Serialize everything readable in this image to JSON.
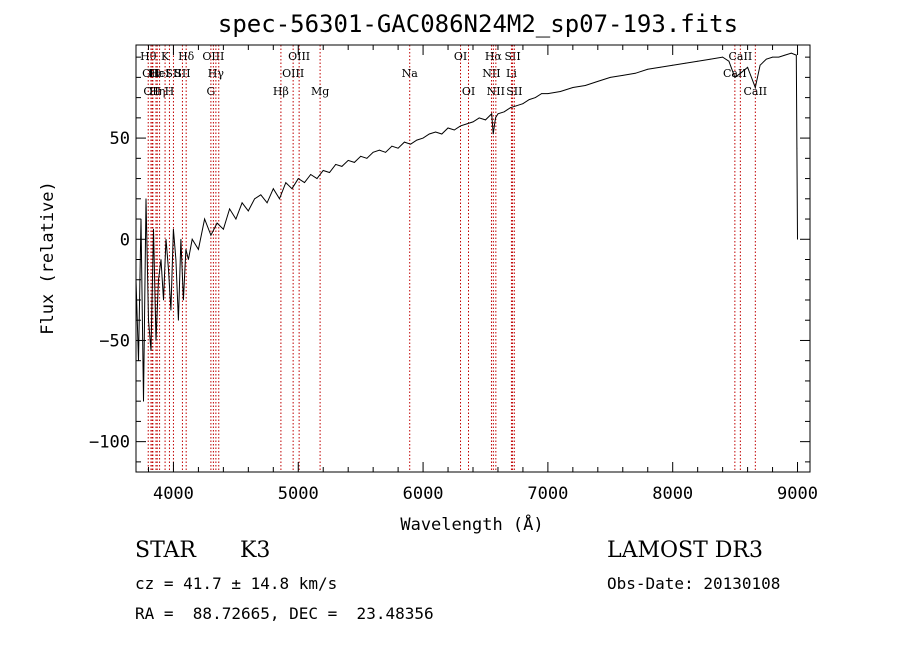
{
  "chart_data": {
    "type": "line",
    "title": "spec-56301-GAC086N24M2_sp07-193.fits",
    "xlabel": "Wavelength (Å)",
    "ylabel": "Flux (relative)",
    "xlim": [
      3700,
      9100
    ],
    "ylim": [
      -115,
      96
    ],
    "xticks": [
      {
        "value": 4000,
        "label": "4000"
      },
      {
        "value": 5000,
        "label": "5000"
      },
      {
        "value": 6000,
        "label": "6000"
      },
      {
        "value": 7000,
        "label": "7000"
      },
      {
        "value": 8000,
        "label": "8000"
      },
      {
        "value": 9000,
        "label": "9000"
      }
    ],
    "yticks": [
      {
        "value": -100,
        "label": "−100"
      },
      {
        "value": -50,
        "label": "−50"
      },
      {
        "value": 0,
        "label": "0"
      },
      {
        "value": 50,
        "label": "50"
      }
    ],
    "series": [
      {
        "name": "flux",
        "x": [
          3700,
          3720,
          3740,
          3760,
          3780,
          3800,
          3820,
          3840,
          3860,
          3880,
          3900,
          3920,
          3940,
          3960,
          3980,
          4000,
          4020,
          4040,
          4060,
          4080,
          4100,
          4120,
          4150,
          4200,
          4250,
          4300,
          4350,
          4400,
          4450,
          4500,
          4550,
          4600,
          4650,
          4700,
          4750,
          4800,
          4850,
          4900,
          4950,
          5000,
          5050,
          5100,
          5150,
          5200,
          5250,
          5300,
          5350,
          5400,
          5450,
          5500,
          5550,
          5600,
          5650,
          5700,
          5750,
          5800,
          5850,
          5900,
          5950,
          6000,
          6050,
          6100,
          6150,
          6200,
          6250,
          6300,
          6350,
          6400,
          6450,
          6500,
          6550,
          6562,
          6580,
          6600,
          6650,
          6700,
          6750,
          6800,
          6850,
          6900,
          6950,
          7000,
          7100,
          7200,
          7300,
          7400,
          7500,
          7600,
          7700,
          7800,
          7900,
          8000,
          8100,
          8200,
          8300,
          8400,
          8450,
          8498,
          8542,
          8600,
          8662,
          8700,
          8750,
          8800,
          8850,
          8900,
          8950,
          8990,
          8995,
          9000
        ],
        "y": [
          -20,
          -60,
          10,
          -80,
          20,
          -40,
          -55,
          5,
          -50,
          -20,
          -10,
          -30,
          0,
          -15,
          -35,
          5,
          -10,
          -40,
          0,
          -30,
          -5,
          -10,
          0,
          -5,
          10,
          2,
          8,
          5,
          15,
          10,
          18,
          14,
          20,
          22,
          18,
          25,
          20,
          28,
          25,
          30,
          28,
          32,
          30,
          34,
          33,
          37,
          36,
          39,
          38,
          41,
          40,
          43,
          44,
          43,
          46,
          45,
          48,
          47,
          49,
          50,
          52,
          53,
          52,
          55,
          54,
          56,
          57,
          58,
          60,
          59,
          62,
          52,
          60,
          62,
          63,
          65,
          66,
          67,
          69,
          70,
          72,
          72,
          73,
          75,
          76,
          78,
          80,
          81,
          82,
          84,
          85,
          86,
          87,
          88,
          89,
          90,
          88,
          80,
          82,
          85,
          75,
          86,
          89,
          90,
          90,
          91,
          92,
          91,
          45,
          0
        ]
      }
    ],
    "lines": [
      {
        "wl": 3798,
        "row": 1,
        "label": "Hθ"
      },
      {
        "wl": 3820,
        "row": 2,
        "label": "OII"
      },
      {
        "wl": 3830,
        "row": 3,
        "label": "OII"
      },
      {
        "wl": 3835,
        "row": 1,
        "label": ""
      },
      {
        "wl": 3860,
        "row": 2,
        "label": "Hε"
      },
      {
        "wl": 3870,
        "row": 3,
        "label": "Hη"
      },
      {
        "wl": 3889,
        "row": 2,
        "label": "HeI"
      },
      {
        "wl": 3933,
        "row": 1,
        "label": "K"
      },
      {
        "wl": 3968,
        "row": 3,
        "label": "H"
      },
      {
        "wl": 4000,
        "row": 2,
        "label": "SII"
      },
      {
        "wl": 4072,
        "row": 2,
        "label": "SII"
      },
      {
        "wl": 4102,
        "row": 1,
        "label": "Hδ"
      },
      {
        "wl": 4300,
        "row": 3,
        "label": "G"
      },
      {
        "wl": 4320,
        "row": 1,
        "label": "OIII"
      },
      {
        "wl": 4340,
        "row": 2,
        "label": "Hγ"
      },
      {
        "wl": 4363,
        "row": 1,
        "label": ""
      },
      {
        "wl": 4861,
        "row": 3,
        "label": "Hβ"
      },
      {
        "wl": 4959,
        "row": 2,
        "label": "OIII"
      },
      {
        "wl": 5007,
        "row": 1,
        "label": "OIII"
      },
      {
        "wl": 5175,
        "row": 3,
        "label": "Mg"
      },
      {
        "wl": 5893,
        "row": 2,
        "label": "Na"
      },
      {
        "wl": 6300,
        "row": 1,
        "label": "OI"
      },
      {
        "wl": 6364,
        "row": 3,
        "label": "OI"
      },
      {
        "wl": 6548,
        "row": 2,
        "label": "NII"
      },
      {
        "wl": 6563,
        "row": 1,
        "label": "Hα"
      },
      {
        "wl": 6583,
        "row": 3,
        "label": "NII"
      },
      {
        "wl": 6708,
        "row": 2,
        "label": "Li"
      },
      {
        "wl": 6717,
        "row": 1,
        "label": "SII"
      },
      {
        "wl": 6731,
        "row": 3,
        "label": "SII"
      },
      {
        "wl": 8498,
        "row": 2,
        "label": "CaII"
      },
      {
        "wl": 8542,
        "row": 1,
        "label": "CaII"
      },
      {
        "wl": 8662,
        "row": 3,
        "label": "CaII"
      }
    ]
  },
  "info": {
    "object_class": "STAR",
    "subclass": "K3",
    "survey": "LAMOST DR3",
    "redshift": "cz = 41.7 ± 14.8 km/s",
    "obs_date": "Obs-Date: 20130108",
    "coords": "RA =  88.72665, DEC =  23.48356"
  }
}
